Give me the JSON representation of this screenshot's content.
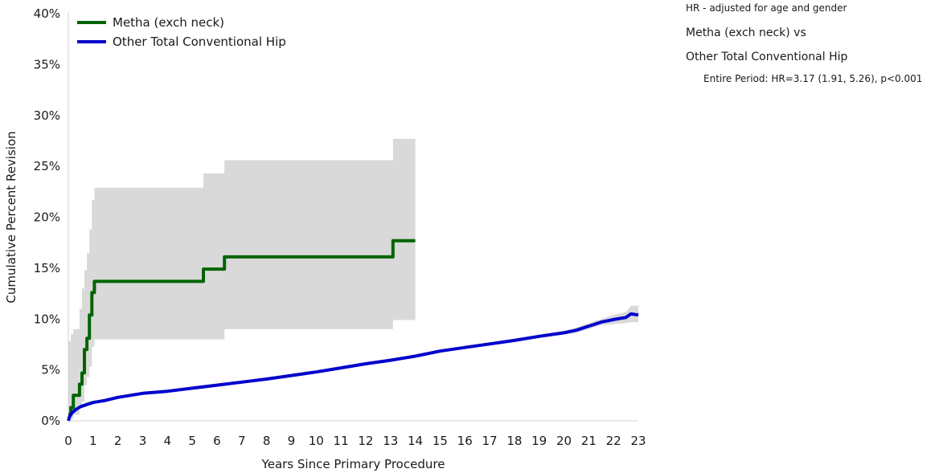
{
  "chart_data": {
    "type": "line",
    "xlabel": "Years Since Primary Procedure",
    "ylabel": "Cumulative Percent Revision",
    "xlim": [
      0,
      23
    ],
    "ylim": [
      0,
      40
    ],
    "x_ticks": [
      "0",
      "1",
      "2",
      "3",
      "4",
      "5",
      "6",
      "7",
      "8",
      "9",
      "10",
      "11",
      "12",
      "13",
      "14",
      "15",
      "16",
      "17",
      "18",
      "19",
      "20",
      "21",
      "22",
      "23"
    ],
    "y_ticks": [
      "0%",
      "5%",
      "10%",
      "15%",
      "20%",
      "25%",
      "30%",
      "35%",
      "40%"
    ],
    "grid": false,
    "legend_position": "top-left",
    "series": [
      {
        "name": "Metha (exch neck)",
        "color": "#006400",
        "step": true,
        "x": [
          0,
          0.1,
          0.2,
          0.45,
          0.55,
          0.65,
          0.75,
          0.85,
          0.95,
          1.05,
          5.45,
          6.3,
          13.1,
          14.0
        ],
        "y": [
          0.6,
          1.3,
          2.5,
          3.6,
          4.7,
          7.0,
          8.1,
          10.4,
          12.6,
          13.7,
          14.9,
          16.1,
          17.7,
          17.7
        ],
        "ci_upper": [
          7.8,
          8.5,
          9.0,
          11.0,
          13.0,
          14.8,
          16.5,
          18.8,
          21.7,
          22.9,
          24.3,
          25.6,
          27.7,
          27.7
        ],
        "ci_lower": [
          0.1,
          0.2,
          0.6,
          1.3,
          1.9,
          3.5,
          4.3,
          5.3,
          7.3,
          8.0,
          8.0,
          9.0,
          9.9,
          11.0
        ]
      },
      {
        "name": "Other Total Conventional Hip",
        "color": "#0000cd",
        "step": false,
        "x": [
          0,
          0.05,
          0.15,
          0.3,
          0.5,
          0.75,
          1,
          1.5,
          2,
          3,
          4,
          5,
          6,
          7,
          8,
          9,
          10,
          11,
          12,
          13,
          14,
          15,
          16,
          17,
          18,
          19,
          20,
          20.5,
          21,
          21.5,
          22,
          22.5,
          22.7,
          23
        ],
        "y": [
          0,
          0.4,
          0.8,
          1.1,
          1.4,
          1.6,
          1.8,
          2.0,
          2.3,
          2.7,
          2.9,
          3.2,
          3.5,
          3.8,
          4.1,
          4.45,
          4.8,
          5.2,
          5.6,
          5.95,
          6.35,
          6.85,
          7.2,
          7.55,
          7.9,
          8.3,
          8.65,
          8.9,
          9.3,
          9.7,
          9.95,
          10.15,
          10.5,
          10.4
        ],
        "ci_upper": [
          0.1,
          0.5,
          0.9,
          1.2,
          1.5,
          1.7,
          1.9,
          2.1,
          2.4,
          2.8,
          3.0,
          3.3,
          3.6,
          3.9,
          4.2,
          4.55,
          4.9,
          5.3,
          5.7,
          6.05,
          6.45,
          6.95,
          7.3,
          7.65,
          8.05,
          8.45,
          8.85,
          9.15,
          9.6,
          10.0,
          10.4,
          10.7,
          11.3,
          11.3
        ],
        "ci_lower": [
          0,
          0.3,
          0.7,
          1.0,
          1.3,
          1.5,
          1.7,
          1.9,
          2.2,
          2.6,
          2.8,
          3.1,
          3.4,
          3.7,
          4.0,
          4.35,
          4.7,
          5.1,
          5.5,
          5.85,
          6.25,
          6.75,
          7.1,
          7.45,
          7.75,
          8.15,
          8.45,
          8.65,
          9.0,
          9.4,
          9.5,
          9.6,
          9.7,
          9.7
        ]
      }
    ]
  },
  "hr_panel": {
    "title": "HR - adjusted for age and gender",
    "comparison_line1": "Metha (exch neck) vs",
    "comparison_line2": "Other Total Conventional Hip",
    "entire_period": "Entire Period: HR=3.17 (1.91, 5.26), p<0.001"
  }
}
